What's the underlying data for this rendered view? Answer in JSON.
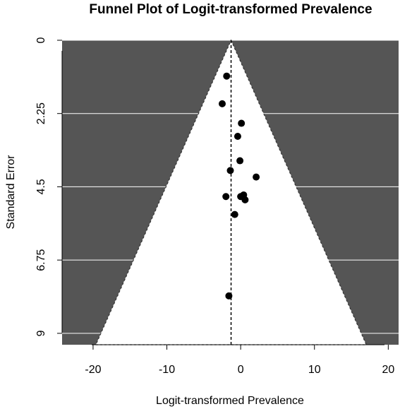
{
  "chart_data": {
    "type": "scatter",
    "title": "Funnel Plot of Logit-transformed Prevalence",
    "xlabel": "Logit-transformed Prevalence",
    "ylabel": "Standard Error",
    "xlim": [
      -24.2,
      21.4
    ],
    "ylim": [
      9.35,
      0
    ],
    "y_axis_reversed": true,
    "x_ticks": [
      -20,
      -10,
      0,
      10,
      20
    ],
    "x_tick_labels": [
      "-20",
      "-10",
      "0",
      "10",
      "20"
    ],
    "y_ticks": [
      0,
      2.25,
      4.5,
      6.75,
      9
    ],
    "y_tick_labels": [
      "0",
      "2.25",
      "4.5",
      "6.75",
      "9"
    ],
    "pooled_estimate": -1.3,
    "funnel_z": 1.96,
    "background_color": "#555555",
    "funnel_fill": "#ffffff",
    "grid_color": "#ffffff",
    "points": [
      {
        "x": -1.9,
        "y": 1.1
      },
      {
        "x": -2.5,
        "y": 1.95
      },
      {
        "x": 0.1,
        "y": 2.55
      },
      {
        "x": -0.4,
        "y": 2.95
      },
      {
        "x": -0.1,
        "y": 3.7
      },
      {
        "x": -1.4,
        "y": 4.0
      },
      {
        "x": 2.1,
        "y": 4.2
      },
      {
        "x": -2.0,
        "y": 4.8
      },
      {
        "x": 0.0,
        "y": 4.8
      },
      {
        "x": 0.4,
        "y": 4.75
      },
      {
        "x": 0.6,
        "y": 4.9
      },
      {
        "x": -0.8,
        "y": 5.35
      },
      {
        "x": -1.6,
        "y": 7.85
      }
    ]
  }
}
